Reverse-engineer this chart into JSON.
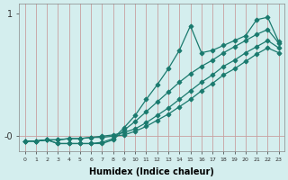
{
  "title": "",
  "xlabel": "Humidex (Indice chaleur)",
  "ylabel": "",
  "bg_color": "#d4eeee",
  "grid_color": "#b8d8d8",
  "line_color": "#1a7a6e",
  "xlim": [
    -0.5,
    23.5
  ],
  "ylim": [
    -0.12,
    1.08
  ],
  "yticks": [
    0,
    1
  ],
  "ytick_labels": [
    "-0",
    "1"
  ],
  "xticks": [
    0,
    1,
    2,
    3,
    4,
    5,
    6,
    7,
    8,
    9,
    10,
    11,
    12,
    13,
    14,
    15,
    16,
    17,
    18,
    19,
    20,
    21,
    22,
    23
  ],
  "series": [
    {
      "x": [
        0,
        1,
        2,
        3,
        4,
        5,
        6,
        7,
        8,
        9,
        10,
        11,
        12,
        13,
        14,
        15,
        16,
        17,
        18,
        19,
        20,
        21,
        22,
        23
      ],
      "y": [
        -0.04,
        -0.04,
        -0.03,
        -0.03,
        -0.02,
        -0.02,
        -0.01,
        -0.01,
        0.0,
        0.01,
        0.04,
        0.08,
        0.13,
        0.18,
        0.24,
        0.3,
        0.37,
        0.43,
        0.5,
        0.55,
        0.61,
        0.67,
        0.72,
        0.68
      ],
      "marker": "D",
      "markersize": 2.5
    },
    {
      "x": [
        0,
        1,
        2,
        3,
        4,
        5,
        6,
        7,
        8,
        9,
        10,
        11,
        12,
        13,
        14,
        15,
        16,
        17,
        18,
        19,
        20,
        21,
        22,
        23
      ],
      "y": [
        -0.04,
        -0.04,
        -0.03,
        -0.03,
        -0.02,
        -0.02,
        -0.01,
        0.0,
        0.01,
        0.03,
        0.06,
        0.11,
        0.17,
        0.23,
        0.3,
        0.37,
        0.44,
        0.5,
        0.57,
        0.62,
        0.68,
        0.73,
        0.78,
        0.72
      ],
      "marker": "D",
      "markersize": 2.5
    },
    {
      "x": [
        0,
        1,
        2,
        3,
        4,
        5,
        6,
        7,
        8,
        9,
        10,
        11,
        12,
        13,
        14,
        15,
        16,
        17,
        18,
        19,
        20,
        21,
        22,
        23
      ],
      "y": [
        -0.04,
        -0.04,
        -0.03,
        -0.06,
        -0.06,
        -0.06,
        -0.06,
        -0.06,
        -0.03,
        0.05,
        0.12,
        0.2,
        0.28,
        0.36,
        0.44,
        0.51,
        0.57,
        0.62,
        0.68,
        0.73,
        0.78,
        0.83,
        0.87,
        0.76
      ],
      "marker": "D",
      "markersize": 2.5
    },
    {
      "x": [
        0,
        1,
        2,
        3,
        4,
        5,
        6,
        7,
        8,
        9,
        10,
        11,
        12,
        13,
        14,
        15,
        16,
        17,
        18,
        19,
        20,
        21,
        22,
        23
      ],
      "y": [
        -0.04,
        -0.04,
        -0.03,
        -0.06,
        -0.06,
        -0.06,
        -0.06,
        -0.05,
        -0.02,
        0.07,
        0.17,
        0.3,
        0.42,
        0.55,
        0.7,
        0.9,
        0.68,
        0.7,
        0.74,
        0.78,
        0.82,
        0.95,
        0.97,
        0.77
      ],
      "marker": "D",
      "markersize": 2.5
    }
  ]
}
